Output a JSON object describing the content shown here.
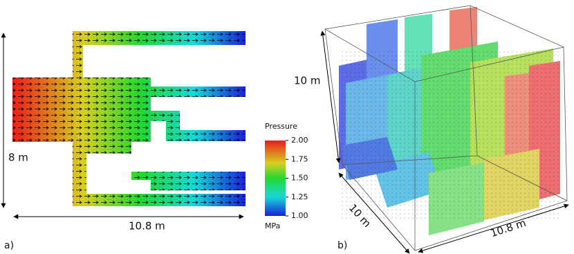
{
  "panel_a": {
    "label": "a)",
    "height_label": "8 m",
    "width_label": "10.8 m"
  },
  "colorbar": {
    "title": "Pressure",
    "ticks": [
      "2.00",
      "1.75",
      "1.50",
      "1.25",
      "1.00"
    ],
    "unit": "MPa"
  },
  "panel_b": {
    "label": "b)",
    "height_label": "10 m",
    "depth_label": "10 m",
    "width_label": "10.8 m"
  }
}
